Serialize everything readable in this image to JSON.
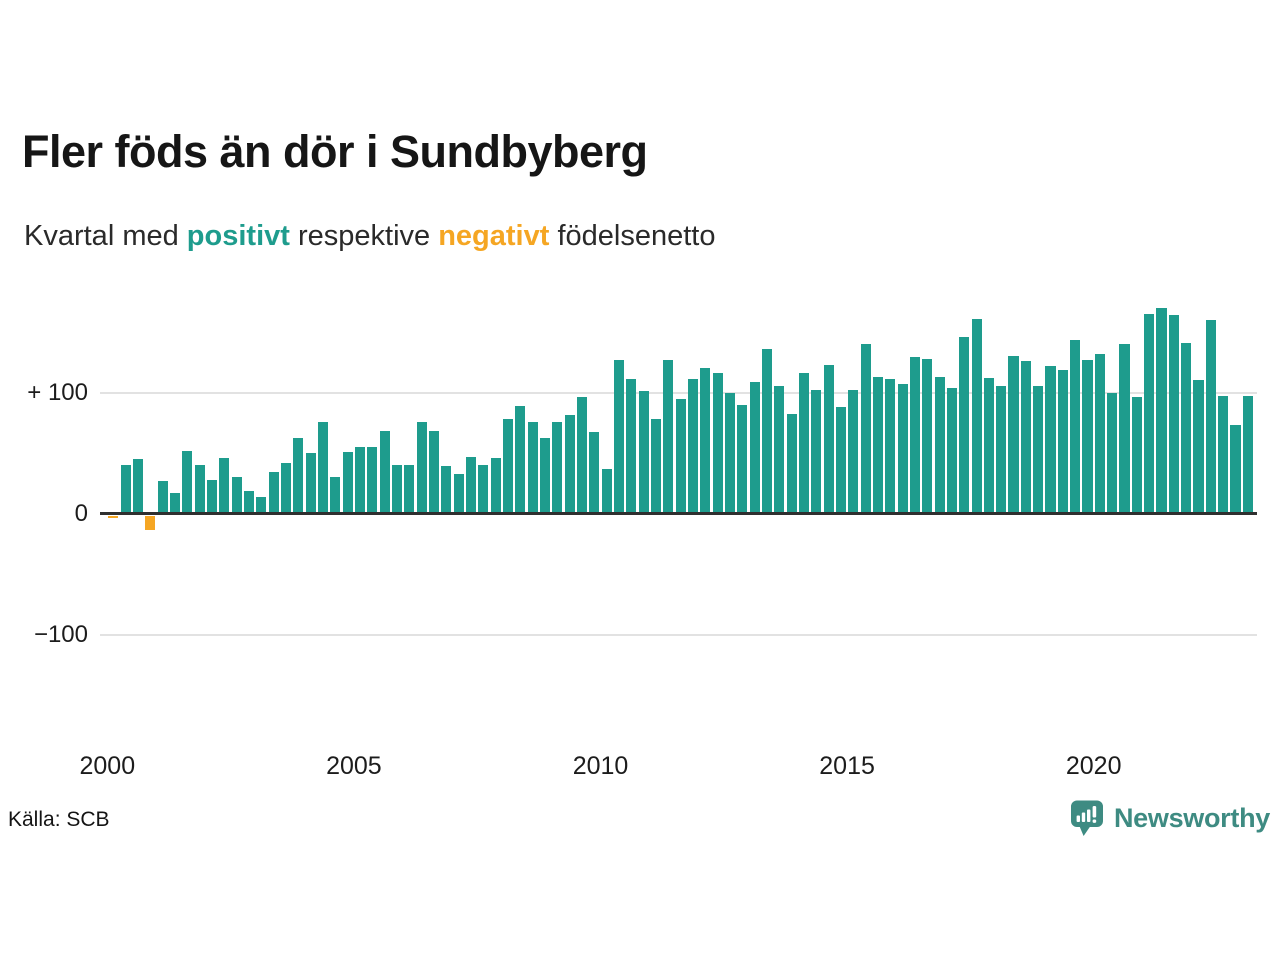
{
  "header": {
    "title": "Fler föds än dör i Sundbyberg",
    "subtitle_pre": "Kvartal med ",
    "subtitle_positive_word": "positivt",
    "subtitle_mid": " respektive ",
    "subtitle_negative_word": "negativt",
    "subtitle_post": " födelsenetto"
  },
  "footer": {
    "source": "Källa: SCB",
    "brand_name": "Newsworthy",
    "brand_icon": "newsworthy-speech-bubble-bar-chart-icon"
  },
  "colors": {
    "positive": "#1e9c8d",
    "negative": "#f5a623",
    "brand": "#3e8b82",
    "axis": "#2f2f2f",
    "gridline": "#e2e2e2",
    "text": "#1c1c1c"
  },
  "chart_data": {
    "type": "bar",
    "title": "Fler föds än dör i Sundbyberg",
    "subtitle": "Kvartal med positivt respektive negativt födelsenetto",
    "x_unit": "quarter",
    "start": "2000 Q1",
    "end": "2023 Q1",
    "grid": "horizontal",
    "legend": "inline-in-subtitle (positive = teal, negative = orange)",
    "ylim": [
      -130,
      185
    ],
    "y_ticks": [
      100,
      0,
      -100
    ],
    "y_tick_labels": [
      "+ 100",
      "0",
      "−100"
    ],
    "x_ticks": [
      2000,
      2005,
      2010,
      2015,
      2020
    ],
    "x_tick_labels": [
      "2000",
      "2005",
      "2010",
      "2015",
      "2020"
    ],
    "quarters": [
      "2000 Q1",
      "2000 Q2",
      "2000 Q3",
      "2000 Q4",
      "2001 Q1",
      "2001 Q2",
      "2001 Q3",
      "2001 Q4",
      "2002 Q1",
      "2002 Q2",
      "2002 Q3",
      "2002 Q4",
      "2003 Q1",
      "2003 Q2",
      "2003 Q3",
      "2003 Q4",
      "2004 Q1",
      "2004 Q2",
      "2004 Q3",
      "2004 Q4",
      "2005 Q1",
      "2005 Q2",
      "2005 Q3",
      "2005 Q4",
      "2006 Q1",
      "2006 Q2",
      "2006 Q3",
      "2006 Q4",
      "2007 Q1",
      "2007 Q2",
      "2007 Q3",
      "2007 Q4",
      "2008 Q1",
      "2008 Q2",
      "2008 Q3",
      "2008 Q4",
      "2009 Q1",
      "2009 Q2",
      "2009 Q3",
      "2009 Q4",
      "2010 Q1",
      "2010 Q2",
      "2010 Q3",
      "2010 Q4",
      "2011 Q1",
      "2011 Q2",
      "2011 Q3",
      "2011 Q4",
      "2012 Q1",
      "2012 Q2",
      "2012 Q3",
      "2012 Q4",
      "2013 Q1",
      "2013 Q2",
      "2013 Q3",
      "2013 Q4",
      "2014 Q1",
      "2014 Q2",
      "2014 Q3",
      "2014 Q4",
      "2015 Q1",
      "2015 Q2",
      "2015 Q3",
      "2015 Q4",
      "2016 Q1",
      "2016 Q2",
      "2016 Q3",
      "2016 Q4",
      "2017 Q1",
      "2017 Q2",
      "2017 Q3",
      "2017 Q4",
      "2018 Q1",
      "2018 Q2",
      "2018 Q3",
      "2018 Q4",
      "2019 Q1",
      "2019 Q2",
      "2019 Q3",
      "2019 Q4",
      "2020 Q1",
      "2020 Q2",
      "2020 Q3",
      "2020 Q4",
      "2021 Q1",
      "2021 Q2",
      "2021 Q3",
      "2021 Q4",
      "2022 Q1",
      "2022 Q2",
      "2022 Q3",
      "2022 Q4",
      "2023 Q1"
    ],
    "series": [
      {
        "name": "Födelsenetto per kvartal",
        "values": [
          -2,
          40,
          45,
          -12,
          27,
          17,
          52,
          40,
          28,
          46,
          30,
          19,
          14,
          34,
          42,
          62,
          50,
          76,
          30,
          51,
          55,
          55,
          68,
          40,
          40,
          76,
          68,
          39,
          33,
          47,
          40,
          46,
          78,
          89,
          76,
          62,
          76,
          81,
          96,
          67,
          37,
          127,
          111,
          101,
          78,
          127,
          95,
          111,
          120,
          116,
          100,
          90,
          109,
          136,
          105,
          82,
          116,
          102,
          123,
          88,
          102,
          140,
          113,
          111,
          107,
          129,
          128,
          113,
          104,
          146,
          161,
          112,
          105,
          130,
          126,
          105,
          122,
          119,
          143,
          127,
          132,
          100,
          140,
          96,
          165,
          170,
          164,
          141,
          110,
          160,
          97,
          73,
          97
        ]
      }
    ]
  }
}
